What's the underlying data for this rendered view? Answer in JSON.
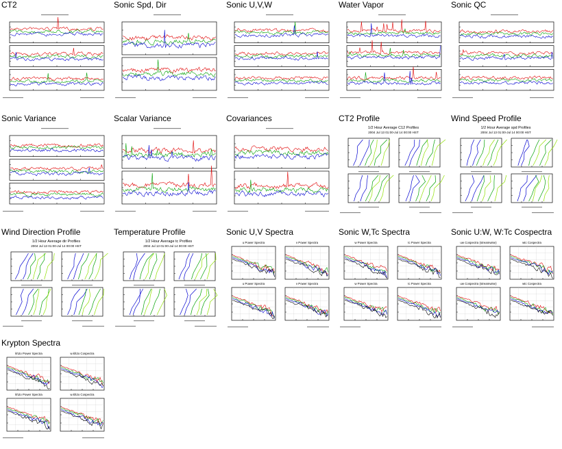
{
  "thumbnails": [
    {
      "title": "CT2",
      "kind": "ts3"
    },
    {
      "title": "Sonic Spd, Dir",
      "kind": "ts2"
    },
    {
      "title": "Sonic U,V,W",
      "kind": "ts3"
    },
    {
      "title": "Water Vapor",
      "kind": "ts3"
    },
    {
      "title": "Sonic QC",
      "kind": "ts3"
    },
    {
      "title": "Sonic Variance",
      "kind": "ts3"
    },
    {
      "title": "Scalar Variance",
      "kind": "ts2"
    },
    {
      "title": "Covariances",
      "kind": "ts2"
    },
    {
      "title": "CT2 Profile",
      "kind": "prof",
      "subtitle": "1/2 Hour Average C12 Profiles",
      "subtitle2": "2004 Jul 13 01:00-Jul 14 00:00 HST"
    },
    {
      "title": "Wind Speed Profile",
      "kind": "prof",
      "subtitle": "1/2 Hour Average spd Profiles",
      "subtitle2": "2004 Jul 13 01:00-Jul 14 00:00 HST"
    },
    {
      "title": "Wind Direction Profile",
      "kind": "prof",
      "subtitle": "1/2 Hour Average dir Profiles",
      "subtitle2": "2004 Jul 13 01:00-Jul 14 00:00 HST"
    },
    {
      "title": "Temperature Profile",
      "kind": "prof",
      "subtitle": "1/2 Hour Average tc Profiles",
      "subtitle2": "2004 Jul 13 01:00-Jul 14 00:00 HST"
    },
    {
      "title": "Sonic U,V Spectra",
      "kind": "spec",
      "labels": [
        "u Power Spectra",
        "v Power Spectra",
        "u Power Spectra",
        "v Power Spectra"
      ]
    },
    {
      "title": "Sonic W,Tc Spectra",
      "kind": "spec",
      "labels": [
        "w Power Spectra",
        "tc Power Spectra",
        "w Power Spectra",
        "tc Power Spectra"
      ]
    },
    {
      "title": "Sonic U:W, W:Tc Cospectra",
      "kind": "spec",
      "labels": [
        "uw Cospectra (streamwise)",
        "wtc Cospectra",
        "uw Cospectra (streamwise)",
        "wtc Cospectra"
      ]
    },
    {
      "title": "Krypton Spectra",
      "kind": "spec",
      "labels": [
        "kh2o Power Spectra",
        "w.kh2o Cospectra",
        "kh2o Power Spectra",
        "w.kh2o Cospectra"
      ]
    }
  ],
  "colors": {
    "red": "#e00000",
    "green": "#00a000",
    "blue": "#0000d0",
    "lime": "#8fe000"
  }
}
